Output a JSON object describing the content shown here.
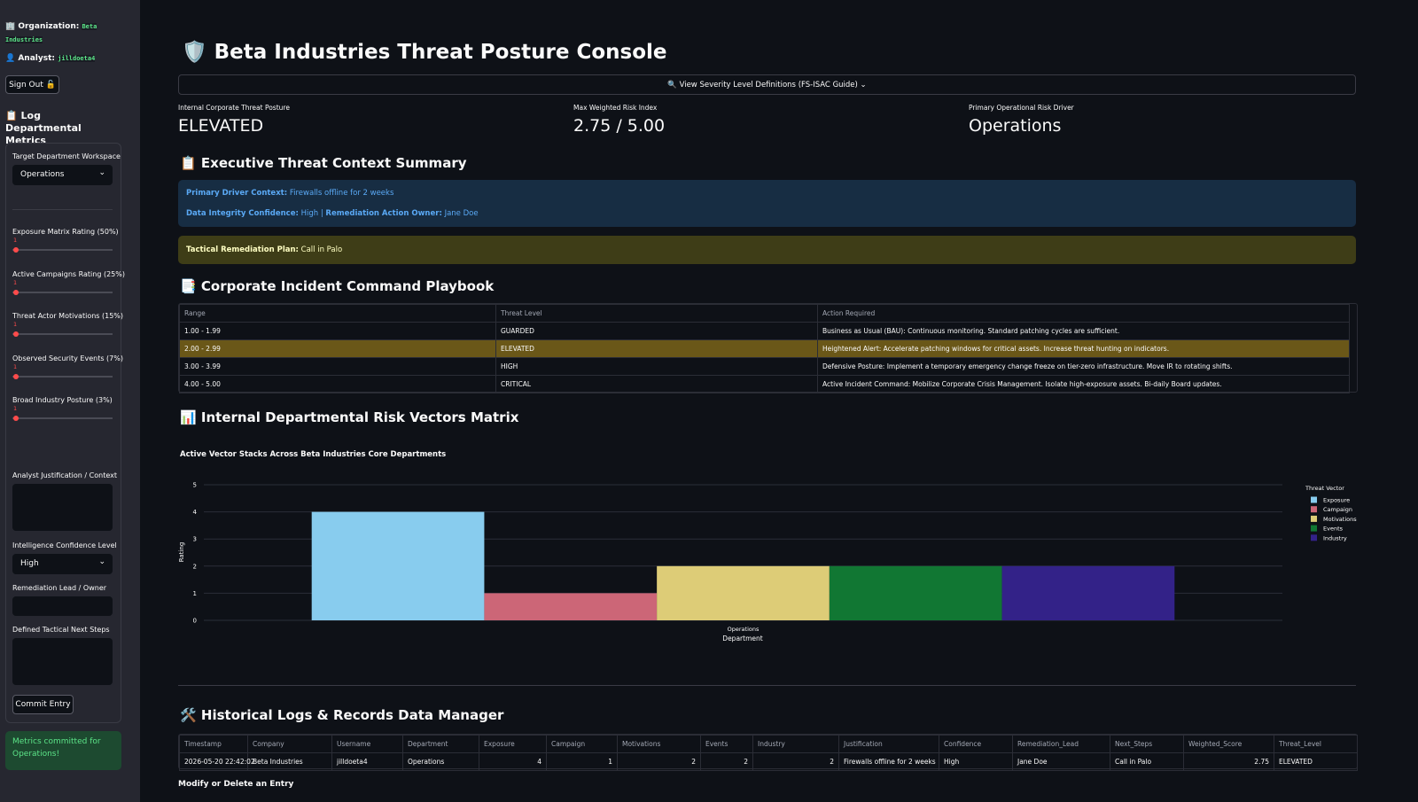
{
  "sidebar": {
    "organization_label": "🏢 Organization:",
    "organization": "Beta Industries",
    "analyst_label": "👤 Analyst:",
    "analyst": "jilldoeta4",
    "sign_out": "Sign Out 🔓",
    "form_title": "📋 Log Departmental Metrics",
    "department_label": "Target Department Workspace",
    "department": "Operations",
    "sliders": [
      {
        "label": "Exposure Matrix Rating (50%)",
        "value": 1
      },
      {
        "label": "Active Campaigns Rating (25%)",
        "value": 1
      },
      {
        "label": "Threat Actor Motivations (15%)",
        "value": 1
      },
      {
        "label": "Observed Security Events (7%)",
        "value": 1
      },
      {
        "label": "Broad Industry Posture (3%)",
        "value": 1
      }
    ],
    "justification_label": "Analyst Justification / Context",
    "confidence_label": "Intelligence Confidence Level",
    "confidence": "High",
    "owner_label": "Remediation Lead / Owner",
    "next_steps_label": "Defined Tactical Next Steps",
    "commit": "Commit Entry",
    "success": "Metrics committed for Operations!"
  },
  "header": {
    "title": "🛡️ Beta Industries Threat Posture Console",
    "expander": "🔍 View Severity Level Definitions (FS-ISAC Guide)"
  },
  "metrics": [
    {
      "label": "Internal Corporate Threat Posture",
      "value": "ELEVATED"
    },
    {
      "label": "Max Weighted Risk Index",
      "value": "2.75 / 5.00"
    },
    {
      "label": "Primary Operational Risk Driver",
      "value": "Operations"
    }
  ],
  "summary": {
    "title": "📋 Executive Threat Context Summary",
    "driver_label": "Primary Driver Context:",
    "driver": "Firewalls offline for 2 weeks",
    "confidence_label": "Data Integrity Confidence:",
    "confidence": "High",
    "separator": "|",
    "owner_label": "Remediation Action Owner:",
    "owner": "Jane Doe",
    "plan_label": "Tactical Remediation Plan:",
    "plan": "Call in Palo"
  },
  "playbook": {
    "title": "📑 Corporate Incident Command Playbook",
    "columns": [
      "Range",
      "Threat Level",
      "Action Required"
    ],
    "rows": [
      [
        "1.00 - 1.99",
        "GUARDED",
        "Business as Usual (BAU): Continuous monitoring. Standard patching cycles are sufficient."
      ],
      [
        "2.00 - 2.99",
        "ELEVATED",
        "Heightened Alert: Accelerate patching windows for critical assets. Increase threat hunting on indicators."
      ],
      [
        "3.00 - 3.99",
        "HIGH",
        "Defensive Posture: Implement a temporary emergency change freeze on tier-zero infrastructure. Move IR to rotating shifts."
      ],
      [
        "4.00 - 5.00",
        "CRITICAL",
        "Active Incident Command: Mobilize Corporate Crisis Management. Isolate high-exposure assets. Bi-daily Board updates."
      ]
    ],
    "highlight_row": 1
  },
  "matrix_title": "📊 Internal Departmental Risk Vectors Matrix",
  "chart_data": {
    "type": "bar",
    "title": "Active Vector Stacks Across Beta Industries Core Departments",
    "xlabel": "Department",
    "ylabel": "Rating",
    "legend_title": "Threat Vector",
    "legend": "right",
    "grid": true,
    "categories": [
      "Operations"
    ],
    "ylim": [
      0,
      5
    ],
    "yticks": [
      0,
      1,
      2,
      3,
      4,
      5
    ],
    "series": [
      {
        "name": "Exposure",
        "color": "#88ccee",
        "values": [
          4
        ]
      },
      {
        "name": "Campaign",
        "color": "#cc6677",
        "values": [
          1
        ]
      },
      {
        "name": "Motivations",
        "color": "#ddcc77",
        "values": [
          2
        ]
      },
      {
        "name": "Events",
        "color": "#117733",
        "values": [
          2
        ]
      },
      {
        "name": "Industry",
        "color": "#332288",
        "values": [
          2
        ]
      }
    ]
  },
  "history": {
    "title": "🛠️ Historical Logs & Records Data Manager",
    "columns": [
      "Timestamp",
      "Company",
      "Username",
      "Department",
      "Exposure",
      "Campaign",
      "Motivations",
      "Events",
      "Industry",
      "Justification",
      "Confidence",
      "Remediation_Lead",
      "Next_Steps",
      "Weighted_Score",
      "Threat_Level"
    ],
    "rows": [
      [
        "2026-05-20 22:42:02",
        "Beta Industries",
        "jilldoeta4",
        "Operations",
        4,
        1,
        2,
        2,
        2,
        "Firewalls offline for 2 weeks",
        "High",
        "Jane Doe",
        "Call in Palo",
        2.75,
        "ELEVATED"
      ]
    ],
    "modify_title": "Modify or Delete an Entry"
  }
}
